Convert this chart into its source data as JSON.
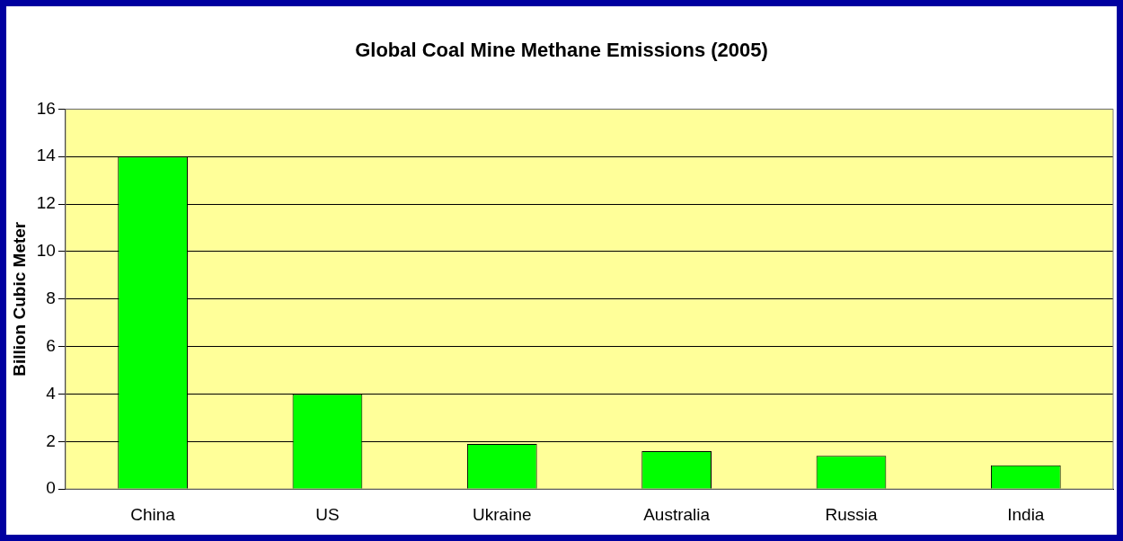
{
  "chart_data": {
    "type": "bar",
    "title": "Global Coal Mine Methane Emissions (2005)",
    "ylabel": "Billion Cubic Meter",
    "categories": [
      "China",
      "US",
      "Ukraine",
      "Australia",
      "Russia",
      "India"
    ],
    "values": [
      14,
      4,
      1.9,
      1.6,
      1.4,
      1.0
    ],
    "color": "#00ff00",
    "ylim": [
      0,
      16
    ],
    "yticks": [
      0,
      2,
      4,
      6,
      8,
      10,
      12,
      14,
      16
    ],
    "grid": "y"
  }
}
